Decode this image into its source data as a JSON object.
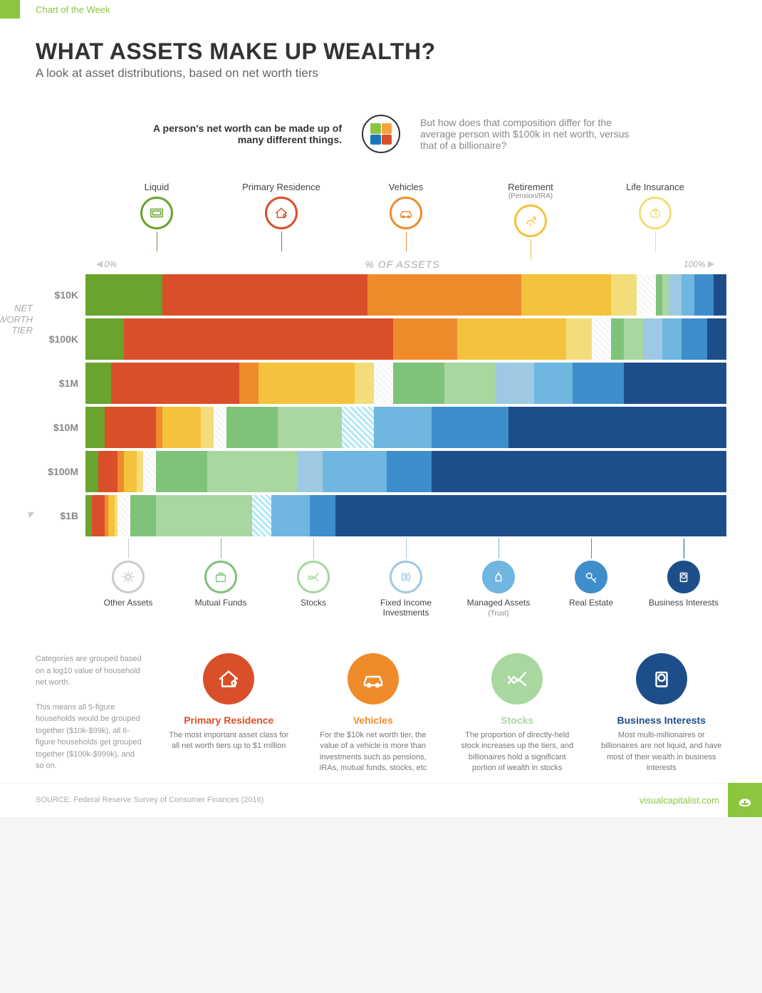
{
  "topbar_label": "Chart of the Week",
  "title": "WHAT ASSETS MAKE UP WEALTH?",
  "subtitle": "A look at asset distributions, based on net worth tiers",
  "intro_left": "A person's net worth can be made up of many different things.",
  "intro_right": "But how does that composition differ for the average person with $100k in net worth, versus that of a billionaire?",
  "puzzle_colors": [
    "#8bc63e",
    "#f8a13f",
    "#1b75bb",
    "#d94f2a"
  ],
  "axis": {
    "zero": "0%",
    "mid": "% OF ASSETS",
    "hundred": "100%",
    "ylabel": "NET WORTH TIER"
  },
  "top_categories": [
    {
      "label": "Liquid",
      "sub": "",
      "color": "#6aa32d"
    },
    {
      "label": "Primary Residence",
      "sub": "",
      "color": "#d94f2a"
    },
    {
      "label": "Vehicles",
      "sub": "",
      "color": "#f08b2c"
    },
    {
      "label": "Retirement",
      "sub": "(Pension/IRA)",
      "color": "#f4c23c"
    },
    {
      "label": "Life Insurance",
      "sub": "",
      "color": "#f3dd7a"
    }
  ],
  "bottom_categories": [
    {
      "label": "Other Assets",
      "sub": "",
      "color": "#cccccc"
    },
    {
      "label": "Mutual Funds",
      "sub": "",
      "color": "#7fc37b"
    },
    {
      "label": "Stocks",
      "sub": "",
      "color": "#a9d7a0"
    },
    {
      "label": "Fixed Income Investments",
      "sub": "",
      "color": "#9ec9e2"
    },
    {
      "label": "Managed Assets",
      "sub": "(Trust)",
      "color": "#6fb6e0"
    },
    {
      "label": "Real Estate",
      "sub": "",
      "color": "#3e8ecc"
    },
    {
      "label": "Business Interests",
      "sub": "",
      "color": "#1d4e89"
    }
  ],
  "asset_colors": {
    "liquid": "#6aa32d",
    "residence": "#d94f2a",
    "vehicles": "#f08b2c",
    "retirement": "#f4c23c",
    "life_ins": "#f3dd7a",
    "other": "#dddddd",
    "mutual": "#7fc37b",
    "stocks": "#a9d7a0",
    "fixed": "#9ec9e2",
    "managed": "#6fb6e0",
    "realestate": "#3e8ecc",
    "business": "#1d4e89"
  },
  "tiers": [
    {
      "label": "$10K",
      "segments": [
        {
          "k": "liquid",
          "v": 12
        },
        {
          "k": "residence",
          "v": 32
        },
        {
          "k": "vehicles",
          "v": 24
        },
        {
          "k": "retirement",
          "v": 14
        },
        {
          "k": "life_ins",
          "v": 4
        },
        {
          "k": "other",
          "v": 3,
          "hatch": true
        },
        {
          "k": "mutual",
          "v": 1
        },
        {
          "k": "stocks",
          "v": 1
        },
        {
          "k": "fixed",
          "v": 2
        },
        {
          "k": "managed",
          "v": 2
        },
        {
          "k": "realestate",
          "v": 3
        },
        {
          "k": "business",
          "v": 2
        }
      ]
    },
    {
      "label": "$100K",
      "segments": [
        {
          "k": "liquid",
          "v": 6
        },
        {
          "k": "residence",
          "v": 42
        },
        {
          "k": "vehicles",
          "v": 10
        },
        {
          "k": "retirement",
          "v": 17
        },
        {
          "k": "life_ins",
          "v": 4
        },
        {
          "k": "other",
          "v": 3,
          "hatch": true
        },
        {
          "k": "mutual",
          "v": 2
        },
        {
          "k": "stocks",
          "v": 3
        },
        {
          "k": "fixed",
          "v": 3
        },
        {
          "k": "managed",
          "v": 3
        },
        {
          "k": "realestate",
          "v": 4
        },
        {
          "k": "business",
          "v": 3
        }
      ]
    },
    {
      "label": "$1M",
      "segments": [
        {
          "k": "liquid",
          "v": 4
        },
        {
          "k": "residence",
          "v": 20
        },
        {
          "k": "vehicles",
          "v": 3
        },
        {
          "k": "retirement",
          "v": 15
        },
        {
          "k": "life_ins",
          "v": 3
        },
        {
          "k": "other",
          "v": 3,
          "hatch": true
        },
        {
          "k": "mutual",
          "v": 8
        },
        {
          "k": "stocks",
          "v": 8
        },
        {
          "k": "fixed",
          "v": 6
        },
        {
          "k": "managed",
          "v": 6
        },
        {
          "k": "realestate",
          "v": 8
        },
        {
          "k": "business",
          "v": 16
        }
      ]
    },
    {
      "label": "$10M",
      "segments": [
        {
          "k": "liquid",
          "v": 3
        },
        {
          "k": "residence",
          "v": 8
        },
        {
          "k": "vehicles",
          "v": 1
        },
        {
          "k": "retirement",
          "v": 6
        },
        {
          "k": "life_ins",
          "v": 2
        },
        {
          "k": "other",
          "v": 2,
          "hatch": true
        },
        {
          "k": "mutual",
          "v": 8
        },
        {
          "k": "stocks",
          "v": 10
        },
        {
          "k": "fixed",
          "v": 5,
          "hatch": true
        },
        {
          "k": "managed",
          "v": 9
        },
        {
          "k": "realestate",
          "v": 12
        },
        {
          "k": "business",
          "v": 34
        }
      ]
    },
    {
      "label": "$100M",
      "segments": [
        {
          "k": "liquid",
          "v": 2
        },
        {
          "k": "residence",
          "v": 3
        },
        {
          "k": "vehicles",
          "v": 1
        },
        {
          "k": "retirement",
          "v": 2
        },
        {
          "k": "life_ins",
          "v": 1
        },
        {
          "k": "other",
          "v": 2,
          "hatch": true
        },
        {
          "k": "mutual",
          "v": 8
        },
        {
          "k": "stocks",
          "v": 14
        },
        {
          "k": "fixed",
          "v": 4
        },
        {
          "k": "managed",
          "v": 10
        },
        {
          "k": "realestate",
          "v": 7
        },
        {
          "k": "business",
          "v": 46
        }
      ]
    },
    {
      "label": "$1B",
      "segments": [
        {
          "k": "liquid",
          "v": 1
        },
        {
          "k": "residence",
          "v": 2
        },
        {
          "k": "vehicles",
          "v": 0.5
        },
        {
          "k": "retirement",
          "v": 1
        },
        {
          "k": "life_ins",
          "v": 0.5
        },
        {
          "k": "other",
          "v": 2,
          "hatch": true
        },
        {
          "k": "mutual",
          "v": 4
        },
        {
          "k": "stocks",
          "v": 15
        },
        {
          "k": "fixed",
          "v": 3,
          "hatch": true
        },
        {
          "k": "managed",
          "v": 6
        },
        {
          "k": "realestate",
          "v": 4
        },
        {
          "k": "business",
          "v": 61
        }
      ]
    }
  ],
  "side_notes": [
    "Categories are grouped based on a log10 value of household net worth.",
    "This means all 5-figure households would be grouped together ($10k-$99k), all 6-figure households get grouped together ($100k-$999k), and so on."
  ],
  "insights": [
    {
      "title": "Primary Residence",
      "color": "#d94f2a",
      "text": "The most important asset class for all net worth tiers up to $1 million"
    },
    {
      "title": "Vehicles",
      "color": "#f08b2c",
      "text": "For the $10k net worth tier, the value of a vehicle is more than investments such as pensions, IRAs, mutual funds, stocks, etc"
    },
    {
      "title": "Stocks",
      "color": "#a9d7a0",
      "text": "The proportion of directly-held stock increases up the tiers, and billionaires hold a significant portion of wealth in stocks"
    },
    {
      "title": "Business Interests",
      "color": "#1d4e89",
      "text": "Most multi-millionaires or billionaires are not liquid, and have most of their wealth in business interests"
    }
  ],
  "source": "SOURCE: Federal Reserve Survey of Consumer Finances (2016)",
  "brand": "visualcapitalist.com"
}
